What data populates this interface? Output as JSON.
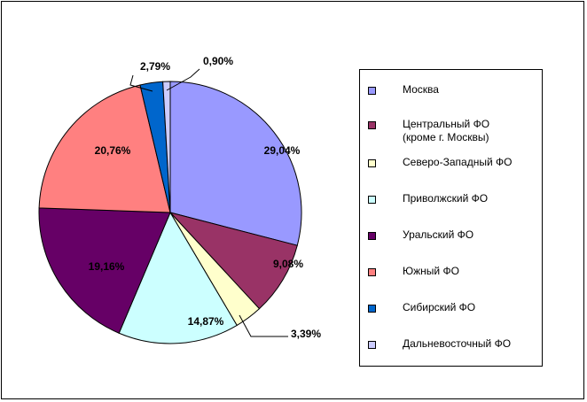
{
  "chart_data": {
    "type": "pie",
    "title": "",
    "start_angle_deg": 0,
    "direction": "clockwise",
    "legend_position": "right",
    "slices": [
      {
        "label": "Москва",
        "value": 29.04,
        "data_label": "29,04%",
        "color": "#9999FF"
      },
      {
        "label": "Центральный ФО\n(кроме г. Москвы)",
        "value": 9.08,
        "data_label": "9,08%",
        "color": "#993366"
      },
      {
        "label": "Северо-Западный ФО",
        "value": 3.39,
        "data_label": "3,39%",
        "color": "#FFFFCC"
      },
      {
        "label": "Приволжский  ФО",
        "value": 14.87,
        "data_label": "14,87%",
        "color": "#CCFFFF"
      },
      {
        "label": "Уральский ФО",
        "value": 19.16,
        "data_label": "19,16%",
        "color": "#660066"
      },
      {
        "label": "Южный ФО",
        "value": 20.76,
        "data_label": "20,76%",
        "color": "#FF8080"
      },
      {
        "label": "Сибирский ФО",
        "value": 2.79,
        "data_label": "2,79%",
        "color": "#0066CC"
      },
      {
        "label": "Дальневосточный ФО",
        "value": 0.9,
        "data_label": "0,90%",
        "color": "#CCCCFF"
      }
    ]
  }
}
